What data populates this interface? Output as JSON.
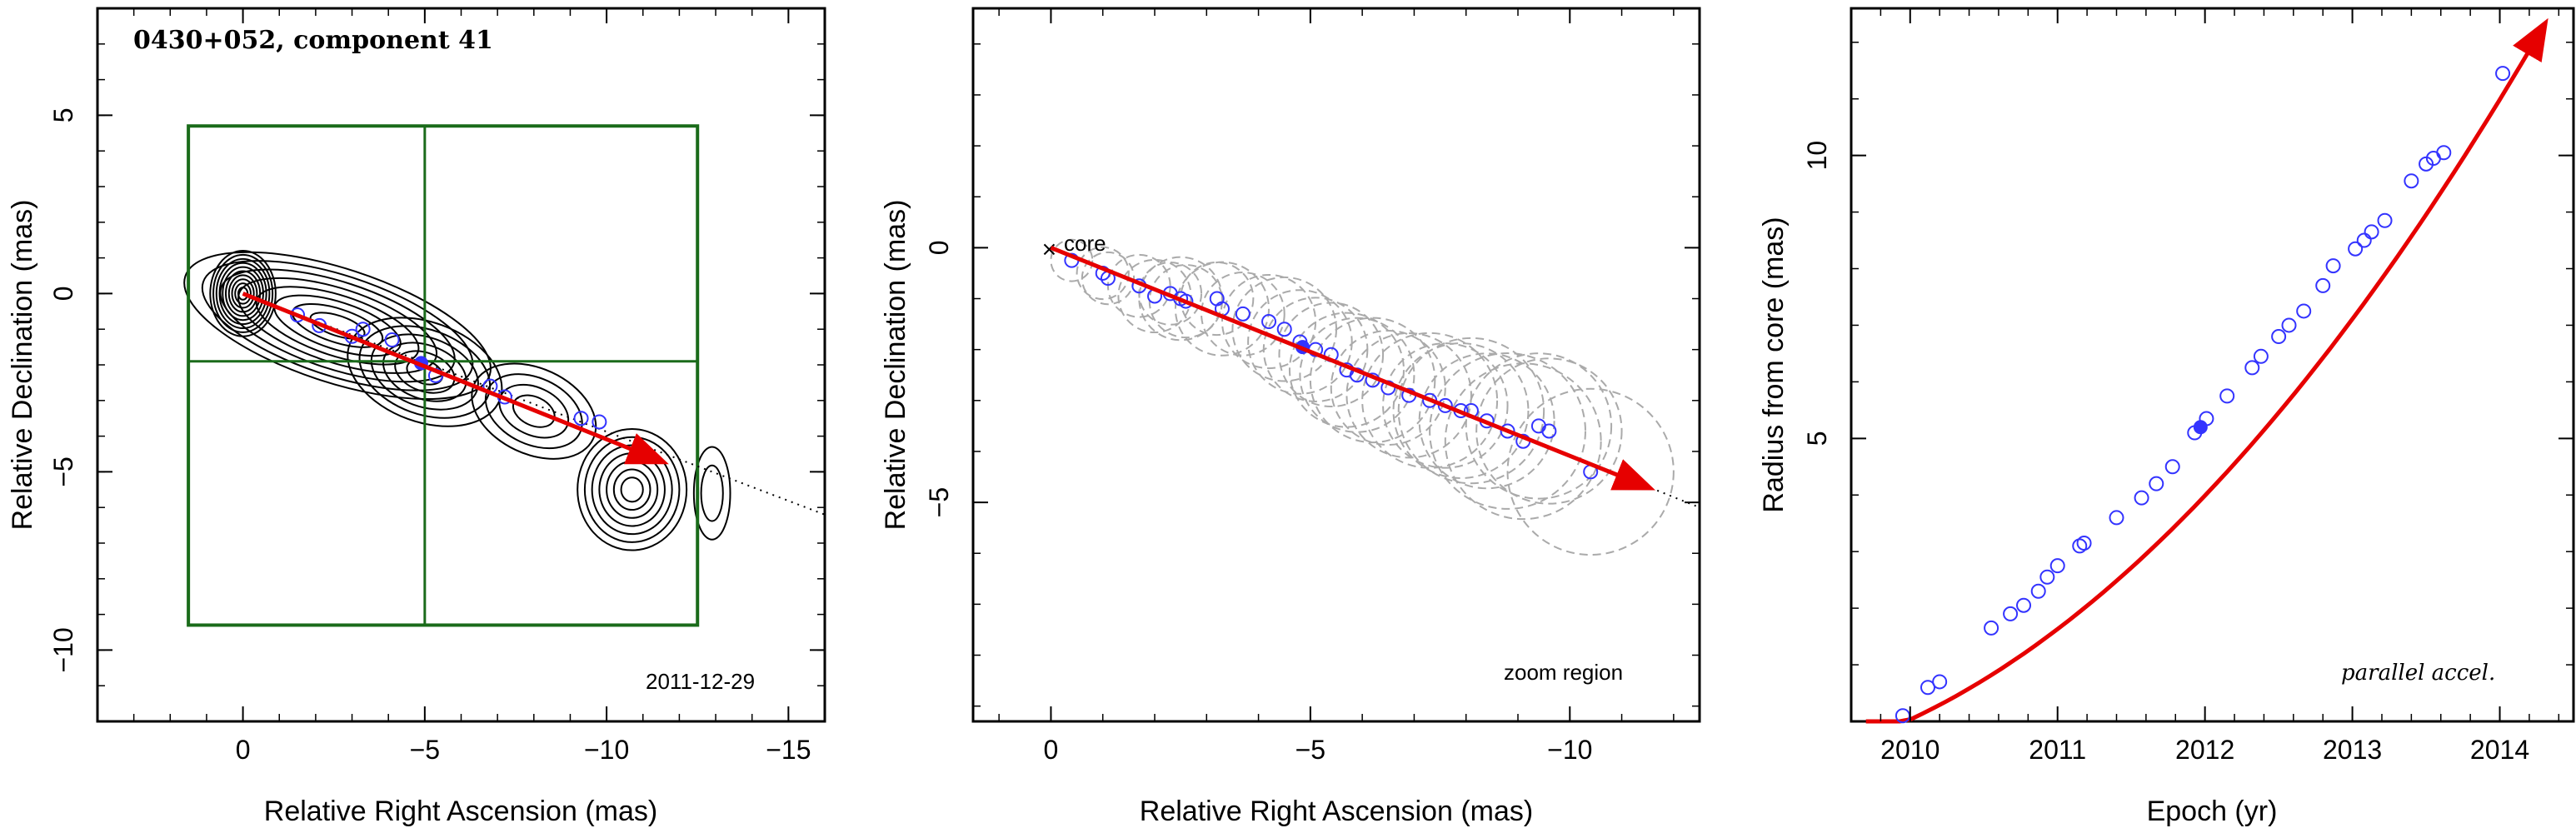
{
  "chart_data": [
    {
      "id": "map",
      "type": "contour",
      "title": "0430+052, component 41",
      "xlabel": "Relative Right Ascension (mas)",
      "ylabel": "Relative Declination (mas)",
      "xlim": [
        4,
        -16
      ],
      "ylim": [
        -12,
        8
      ],
      "xticks": [
        0,
        -5,
        -10,
        -15
      ],
      "xtick_labels": [
        "0",
        "−5",
        "−10",
        "−15"
      ],
      "yticks": [
        5,
        0,
        -5,
        -10
      ],
      "ytick_labels": [
        "5",
        "0",
        "−5",
        "−10"
      ],
      "epoch_label": "2011-12-29",
      "zoom_box": {
        "x": [
          1.5,
          -12.5
        ],
        "y": [
          4.7,
          -9.3
        ]
      },
      "crosshair": {
        "x": -5,
        "y": -1.9
      },
      "motion_vector": {
        "from": [
          0,
          0
        ],
        "to": [
          -11.5,
          -4.7
        ]
      },
      "trajectory_line": {
        "from": [
          0,
          0
        ],
        "to": [
          -16,
          -6.2
        ]
      },
      "positions": {
        "x": [
          -1.5,
          -2.1,
          -3.0,
          -3.3,
          -4.1,
          -5.3,
          -6.8,
          -7.2,
          -9.3,
          -9.8
        ],
        "y": [
          -0.6,
          -0.9,
          -1.2,
          -1.0,
          -1.3,
          -2.3,
          -2.6,
          -2.9,
          -3.5,
          -3.6
        ]
      },
      "current_position": {
        "x": -4.9,
        "y": -1.95
      },
      "colors": {
        "contour": "#000000",
        "box": "#1a6b1a",
        "vector": "#e60000",
        "points": "#3333ff"
      }
    },
    {
      "id": "zoom",
      "type": "scatter",
      "xlabel": "Relative Right Ascension (mas)",
      "ylabel": "Relative Declination (mas)",
      "xlim": [
        1.5,
        -12.5
      ],
      "ylim": [
        -9.3,
        4.7
      ],
      "xticks": [
        0,
        -5,
        -10
      ],
      "xtick_labels": [
        "0",
        "−5",
        "−10"
      ],
      "yticks": [
        0,
        -5
      ],
      "ytick_labels": [
        "0",
        "−5"
      ],
      "core_label": "core",
      "region_label": "zoom region",
      "positions": {
        "x": [
          -0.4,
          -1.0,
          -1.1,
          -1.7,
          -2.0,
          -2.3,
          -2.5,
          -2.6,
          -3.2,
          -3.3,
          -3.7,
          -4.2,
          -4.5,
          -4.8,
          -5.1,
          -5.4,
          -5.7,
          -5.9,
          -6.2,
          -6.5,
          -6.9,
          -7.3,
          -7.6,
          -7.9,
          -8.1,
          -8.4,
          -8.8,
          -9.1,
          -9.4,
          -9.6,
          -10.4
        ],
        "y": [
          -0.25,
          -0.5,
          -0.6,
          -0.75,
          -0.95,
          -0.9,
          -1.0,
          -1.05,
          -1.0,
          -1.2,
          -1.3,
          -1.45,
          -1.6,
          -1.85,
          -2.0,
          -2.1,
          -2.4,
          -2.5,
          -2.6,
          -2.75,
          -2.9,
          -3.0,
          -3.1,
          -3.2,
          -3.2,
          -3.4,
          -3.6,
          -3.8,
          -3.5,
          -3.6,
          -4.4
        ]
      },
      "sizes_mas": [
        0.4,
        0.5,
        0.5,
        0.6,
        0.7,
        0.6,
        0.8,
        0.7,
        0.7,
        0.9,
        0.8,
        0.9,
        1.0,
        1.0,
        1.0,
        1.0,
        1.1,
        1.1,
        1.2,
        1.1,
        1.2,
        1.3,
        1.2,
        1.3,
        1.4,
        1.3,
        1.5,
        1.5,
        1.4,
        1.4,
        1.6
      ],
      "current_position": {
        "x": -4.85,
        "y": -1.95
      },
      "motion_vector": {
        "from": [
          0,
          0
        ],
        "to": [
          -11.5,
          -4.7
        ]
      },
      "trajectory_line": {
        "from": [
          0,
          0
        ],
        "to": [
          -12.5,
          -5.1
        ]
      },
      "colors": {
        "points": "#3333ff",
        "ellipses": "#aaaaaa",
        "vector": "#e60000"
      }
    },
    {
      "id": "radius",
      "type": "scatter",
      "xlabel": "Epoch (yr)",
      "ylabel": "Radius from core (mas)",
      "xlim": [
        2009.6,
        2014.5
      ],
      "ylim": [
        0,
        12.6
      ],
      "xticks": [
        2010,
        2011,
        2012,
        2013,
        2014
      ],
      "xtick_labels": [
        "2010",
        "2011",
        "2012",
        "2013",
        "2014"
      ],
      "yticks": [
        5,
        10
      ],
      "ytick_labels": [
        "5",
        "10"
      ],
      "fit_label": "parallel accel.",
      "points": {
        "x": [
          2009.95,
          2010.12,
          2010.2,
          2010.55,
          2010.68,
          2010.77,
          2010.87,
          2010.93,
          2011.0,
          2011.15,
          2011.18,
          2011.4,
          2011.57,
          2011.67,
          2011.78,
          2011.93,
          2012.01,
          2012.15,
          2012.32,
          2012.38,
          2012.5,
          2012.57,
          2012.67,
          2012.8,
          2012.87,
          2013.02,
          2013.08,
          2013.13,
          2013.22,
          2013.4,
          2013.5,
          2013.55,
          2013.62,
          2014.02
        ],
        "y": [
          0.1,
          0.6,
          0.7,
          1.65,
          1.9,
          2.05,
          2.3,
          2.55,
          2.75,
          3.1,
          3.15,
          3.6,
          3.95,
          4.2,
          4.5,
          5.1,
          5.35,
          5.75,
          6.25,
          6.45,
          6.8,
          7.0,
          7.25,
          7.7,
          8.05,
          8.35,
          8.5,
          8.65,
          8.85,
          9.55,
          9.85,
          9.95,
          10.05,
          11.45
        ]
      },
      "current_point": {
        "x": 2011.97,
        "y": 5.2
      },
      "fit": {
        "x": [
          2009.7,
          2014.3
        ],
        "y": [
          -0.3,
          12.3
        ]
      },
      "colors": {
        "points": "#3333ff",
        "fit": "#e60000"
      }
    }
  ]
}
